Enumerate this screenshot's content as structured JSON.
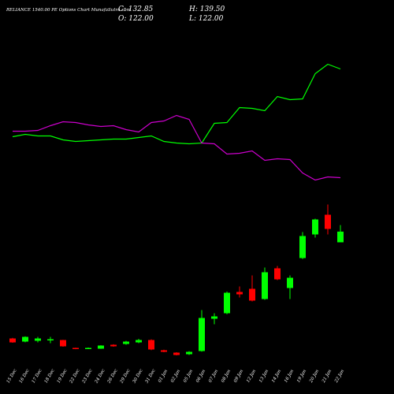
{
  "chart_data": {
    "type": "candlestick",
    "title": "RELIANCE 1540.00 PE Options  Chart MunafaSutra.com",
    "readout": [
      "C: 132.85",
      "H: 139.50",
      "O: 122.00",
      "L: 122.00"
    ],
    "categories": [
      "15 Dec",
      "16 Dec",
      "17 Dec",
      "18 Dec",
      "19 Dec",
      "22 Dec",
      "23 Dec",
      "24 Dec",
      "26 Dec",
      "29 Dec",
      "30 Dec",
      "31 Dec",
      "01 Jan",
      "02 Jan",
      "05 Jan",
      "06 Jan",
      "07 Jan",
      "08 Jan",
      "09 Jan",
      "12 Jan",
      "13 Jan",
      "14 Jan",
      "16 Jan",
      "19 Jan",
      "20 Jan",
      "21 Jan",
      "22 Jan"
    ],
    "open": [
      24.4,
      21.2,
      22,
      22.8,
      22.8,
      14.8,
      14,
      14,
      18,
      18.8,
      20.4,
      22.8,
      12.4,
      10,
      8.4,
      11.6,
      44.4,
      50,
      71.6,
      74.8,
      64.4,
      95.6,
      75.6,
      106,
      130,
      150,
      122
    ],
    "high": [
      25,
      26.5,
      26,
      26,
      23,
      15,
      15.2,
      17.5,
      18.5,
      22,
      24,
      23.5,
      13,
      10.4,
      11.5,
      53.2,
      50,
      72,
      77.2,
      88.4,
      96.4,
      98,
      88.4,
      132.4,
      146,
      160.4,
      139.5
    ],
    "low": [
      20,
      20.5,
      20.4,
      19.6,
      16,
      13.5,
      13.6,
      13.8,
      16,
      18,
      19.6,
      12.5,
      10.4,
      7.2,
      7.6,
      11,
      38.8,
      49,
      66,
      62,
      63.6,
      83.6,
      64.4,
      105,
      126.8,
      130,
      122
    ],
    "close": [
      20.4,
      26,
      24.4,
      23.6,
      16.4,
      14,
      14.8,
      17.2,
      16.4,
      21.2,
      22.8,
      13.2,
      10.8,
      7.6,
      10.8,
      45.2,
      46.8,
      70.8,
      69.2,
      62.8,
      91.6,
      84.4,
      86,
      128.4,
      145.2,
      135.6,
      132.85
    ],
    "up_color": "#00ff00",
    "down_color": "#ff0000",
    "lines": [
      {
        "color": "#00ff00",
        "values": [
          229.2,
          231.6,
          230,
          230,
          226,
          224.4,
          225.2,
          226,
          226.8,
          226.8,
          228.4,
          230,
          224.4,
          222.8,
          222,
          222.8,
          242.8,
          243.6,
          258.8,
          258,
          255.6,
          270,
          266.8,
          267.6,
          293.2,
          302.8,
          298
        ]
      },
      {
        "color": "#cc00cc",
        "values": [
          234.8,
          234.8,
          235.6,
          240.4,
          244.4,
          243.6,
          241.2,
          239.6,
          240.4,
          236.4,
          234,
          243.6,
          245.2,
          250.8,
          246.8,
          222.8,
          222,
          211.6,
          212.4,
          214.8,
          205.2,
          206.8,
          206,
          192.4,
          185.2,
          188.4,
          187.6
        ]
      }
    ],
    "ylim": [
      4,
      320
    ]
  }
}
